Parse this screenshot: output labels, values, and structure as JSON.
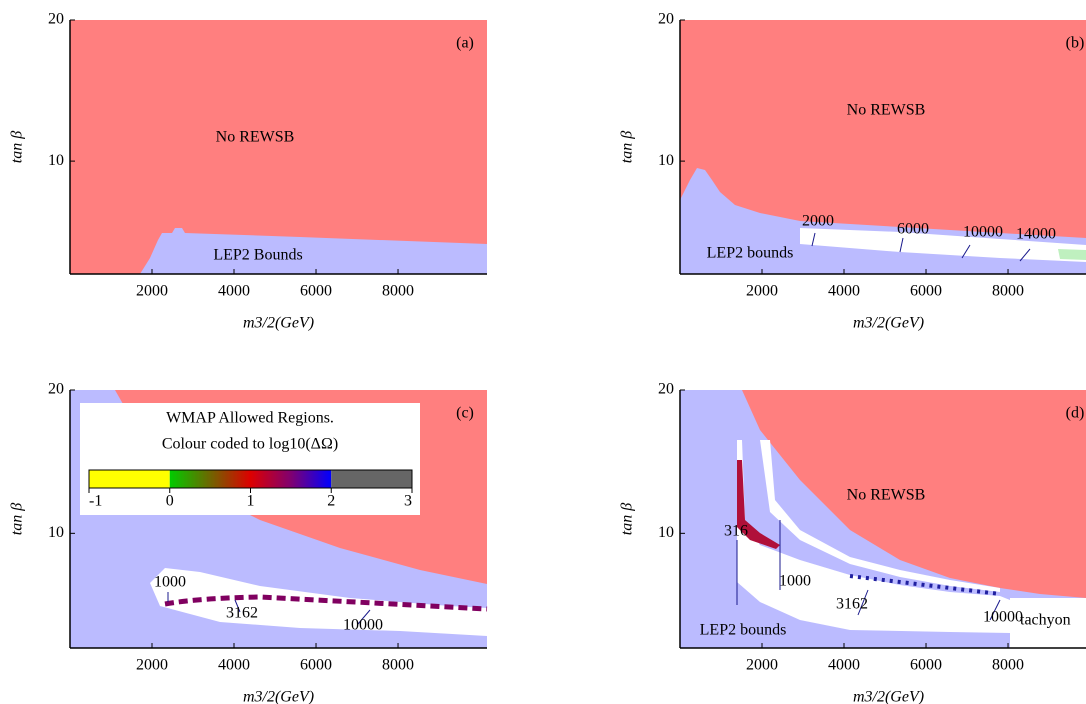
{
  "chart_data": [
    {
      "type": "region",
      "panel_label": "(a)",
      "xlabel": "m3/2(GeV)",
      "ylabel": "tan β",
      "xlim": [
        0,
        10170
      ],
      "ylim": [
        2,
        20
      ],
      "xticks": [
        2000,
        4000,
        6000,
        8000
      ],
      "yticks": [
        10,
        20
      ],
      "annotations": [
        "No REWSB",
        "LEP2 Bounds"
      ]
    },
    {
      "type": "region",
      "panel_label": "(b)",
      "xlabel": "m3/2(GeV)",
      "ylabel": "tan β",
      "xlim": [
        0,
        10170
      ],
      "ylim": [
        2,
        20
      ],
      "xticks": [
        2000,
        4000,
        6000,
        8000
      ],
      "yticks": [
        10,
        20
      ],
      "annotations": [
        "No REWSB",
        "LEP2 bounds",
        "2000",
        "6000",
        "10000",
        "14000"
      ]
    },
    {
      "type": "region",
      "panel_label": "(c)",
      "xlabel": "m3/2(GeV)",
      "ylabel": "tan β",
      "xlim": [
        0,
        10170
      ],
      "ylim": [
        2,
        20
      ],
      "xticks": [
        2000,
        4000,
        6000,
        8000
      ],
      "yticks": [
        10,
        20
      ],
      "annotations": [
        "1000",
        "3162",
        "10000"
      ],
      "colorbar": {
        "title": "WMAP Allowed Regions.",
        "subtitle": "Colour coded to log10(ΔΩ)",
        "clim": [
          -1,
          3
        ],
        "ticks": [
          -1,
          0,
          1,
          2,
          3
        ]
      }
    },
    {
      "type": "region",
      "panel_label": "(d)",
      "xlabel": "m3/2(GeV)",
      "ylabel": "tan β",
      "xlim": [
        0,
        10170
      ],
      "ylim": [
        2,
        20
      ],
      "xticks": [
        2000,
        4000,
        6000,
        8000
      ],
      "yticks": [
        10,
        20
      ],
      "annotations": [
        "No REWSB",
        "LEP2 bounds",
        "316",
        "1000",
        "3162",
        "10000",
        "tachyon"
      ]
    }
  ]
}
